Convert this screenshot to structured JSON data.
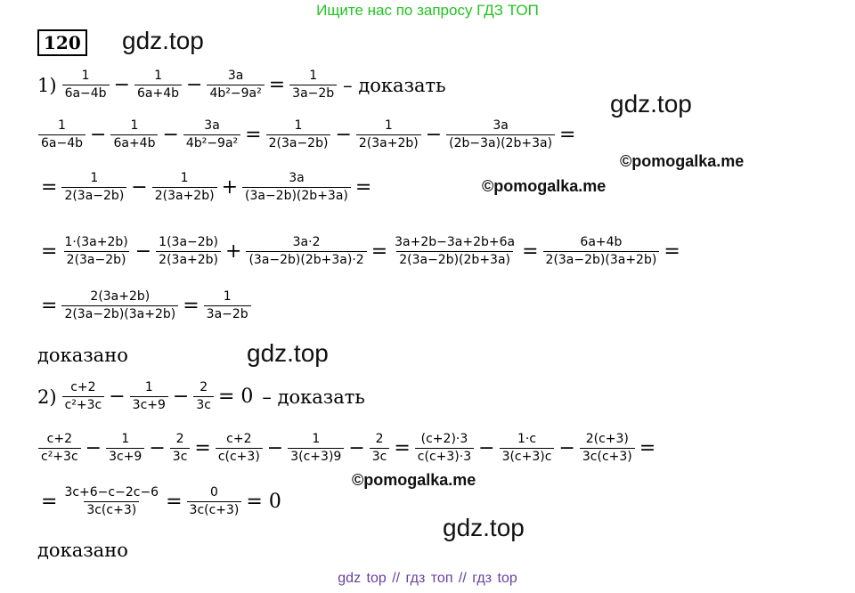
{
  "banner_top": "Ищите нас по запросу ГДЗ ТОП",
  "banner_bottom": "gdz top  //  гдз топ  //  гдз top",
  "task_number": "120",
  "header_watermark": "gdz.top",
  "watermarks": {
    "gdz1": "gdz.top",
    "gdz2": "gdz.top",
    "gdz3": "gdz.top",
    "pom1": "©pomogalka.me",
    "pom2": "©pomogalka.me",
    "pom3": "©pomogalka.me"
  },
  "part1": {
    "label": "1)",
    "prove": "– доказать",
    "l0": {
      "f1n": "1",
      "f1d": "6a−4b",
      "o1": "−",
      "f2n": "1",
      "f2d": "6a+4b",
      "o2": "−",
      "f3n": "3a",
      "f3d": "4b²−9a²",
      "o3": "=",
      "f4n": "1",
      "f4d": "3a−2b"
    },
    "l1": {
      "f1n": "1",
      "f1d": "6a−4b",
      "o1": "−",
      "f2n": "1",
      "f2d": "6a+4b",
      "o2": "−",
      "f3n": "3a",
      "f3d": "4b²−9a²",
      "o3": "=",
      "f4n": "1",
      "f4d": "2(3a−2b)",
      "o4": "−",
      "f5n": "1",
      "f5d": "2(3a+2b)",
      "o5": "−",
      "f6n": "3a",
      "f6d": "(2b−3a)(2b+3a)",
      "o6": "="
    },
    "l2": {
      "o0": "=",
      "f1n": "1",
      "f1d": "2(3a−2b)",
      "o1": "−",
      "f2n": "1",
      "f2d": "2(3a+2b)",
      "o2": "+",
      "f3n": "3a",
      "f3d": "(3a−2b)(2b+3a)",
      "o3": "="
    },
    "l3": {
      "o0": "=",
      "f1n": "1·(3a+2b)",
      "f1d": "2(3a−2b)",
      "o1": "−",
      "f2n": "1(3a−2b)",
      "f2d": "2(3a+2b)",
      "o2": "+",
      "f3n": "3a·2",
      "f3d": "(3a−2b)(2b+3a)·2",
      "o3": "=",
      "f4n": "3a+2b−3a+2b+6a",
      "f4d": "2(3a−2b)(2b+3a)",
      "o4": "=",
      "f5n": "6a+4b",
      "f5d": "2(3a−2b)(3a+2b)",
      "o5": "="
    },
    "l4": {
      "o0": "=",
      "f1n": "2(3a+2b)",
      "f1d": "2(3a−2b)(3a+2b)",
      "o1": "=",
      "f2n": "1",
      "f2d": "3a−2b"
    },
    "proved": "доказано"
  },
  "part2": {
    "label": "2)",
    "prove": "– доказать",
    "l0": {
      "f1n": "c+2",
      "f1d": "c²+3c",
      "o1": "−",
      "f2n": "1",
      "f2d": "3c+9",
      "o2": "−",
      "f3n": "2",
      "f3d": "3c",
      "o3": "= 0"
    },
    "l1": {
      "f1n": "c+2",
      "f1d": "c²+3c",
      "o1": "−",
      "f2n": "1",
      "f2d": "3c+9",
      "o2": "−",
      "f3n": "2",
      "f3d": "3c",
      "o3": "=",
      "f4n": "c+2",
      "f4d": "c(c+3)",
      "o4": "−",
      "f5n": "1",
      "f5d": "3(c+3)9",
      "o5": "−",
      "f6n": "2",
      "f6d": "3c",
      "o6": "=",
      "f7n": "(c+2)·3",
      "f7d": "c(c+3)·3",
      "o7": "−",
      "f8n": "1·c",
      "f8d": "3(c+3)c",
      "o8": "−",
      "f9n": "2(c+3)",
      "f9d": "3c(c+3)",
      "o9": "="
    },
    "l2": {
      "o0": "=",
      "f1n": "3c+6−c−2c−6",
      "f1d": "3c(c+3)",
      "o1": "=",
      "f2n": "0",
      "f2d": "3c(c+3)",
      "o2": "= 0"
    },
    "proved": "доказано"
  }
}
